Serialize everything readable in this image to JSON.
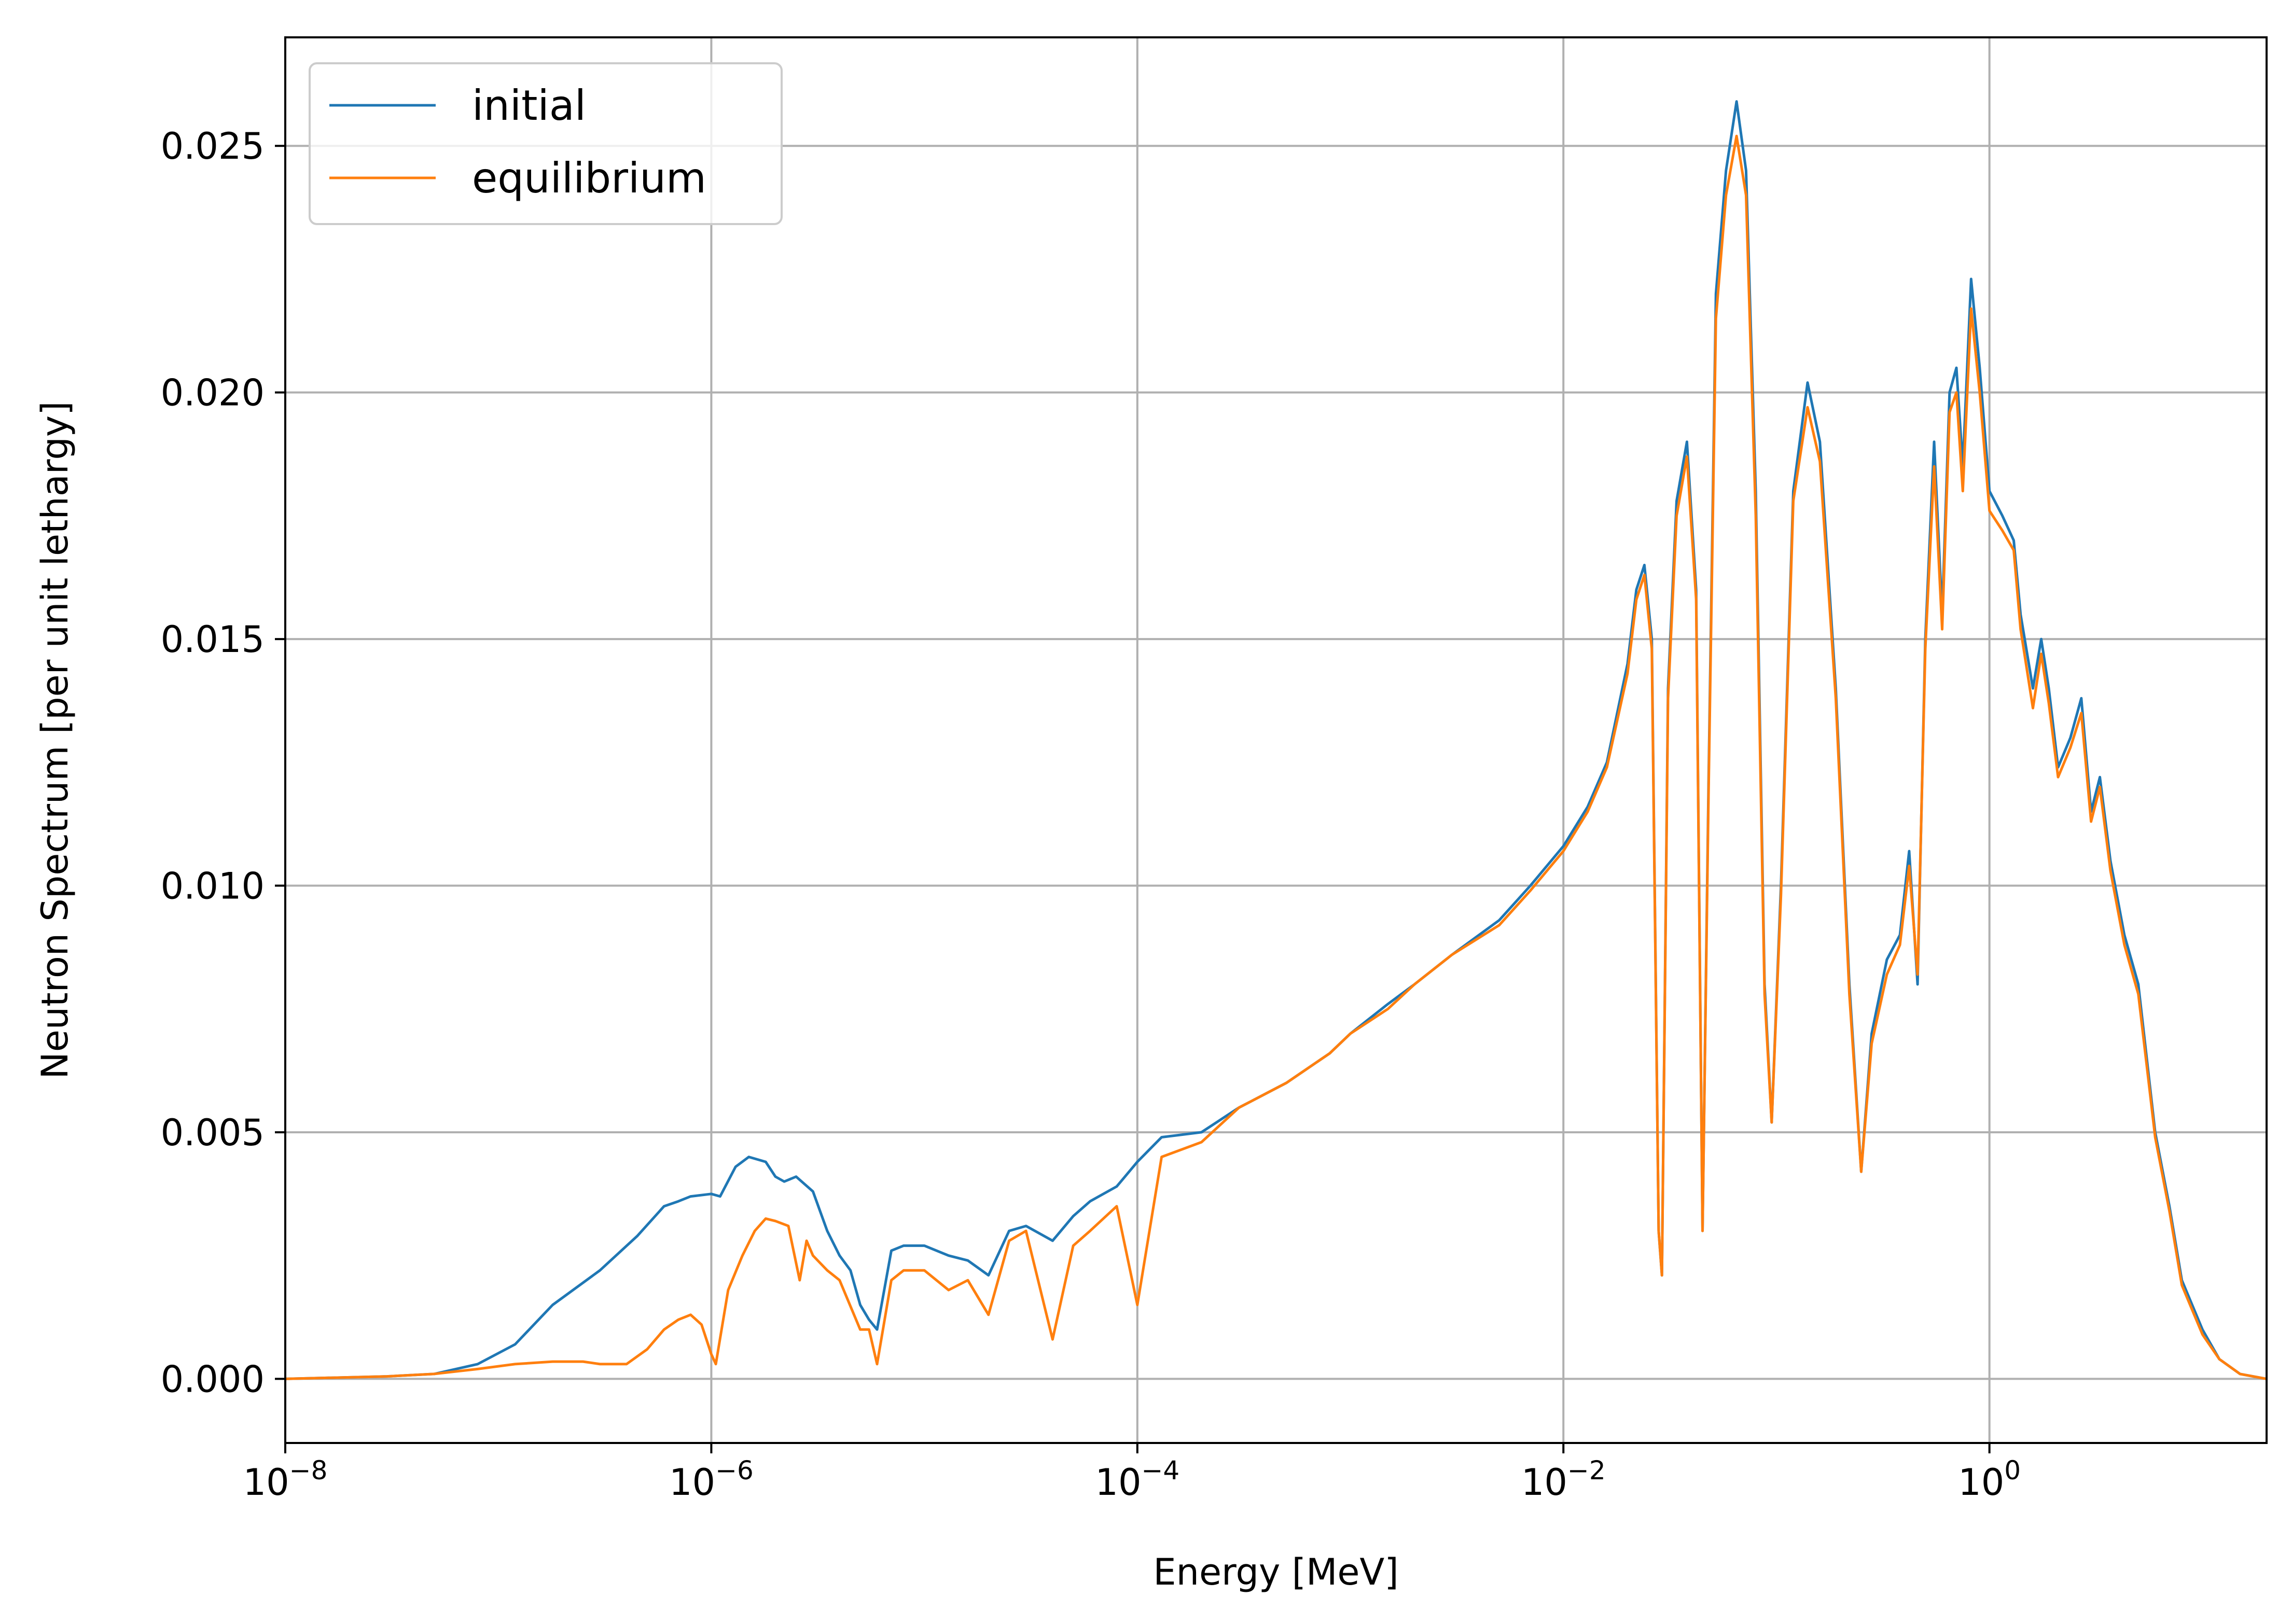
{
  "chart_data": {
    "type": "line",
    "title": "",
    "xlabel": "Energy [MeV]",
    "ylabel": "Neutron Spectrum [per unit lethargy]",
    "xscale": "log",
    "xlim": [
      1e-08,
      20
    ],
    "ylim": [
      -0.0013,
      0.0272
    ],
    "grid": true,
    "legend": "top-left",
    "x_ticks": [
      {
        "base": "10",
        "exp": "−8",
        "value": 1e-08
      },
      {
        "base": "10",
        "exp": "−6",
        "value": 1e-06
      },
      {
        "base": "10",
        "exp": "−4",
        "value": 0.0001
      },
      {
        "base": "10",
        "exp": "−2",
        "value": 0.01
      },
      {
        "base": "10",
        "exp": "0",
        "value": 1
      }
    ],
    "y_ticks": [
      {
        "label": "0.000",
        "value": 0.0
      },
      {
        "label": "0.005",
        "value": 0.005
      },
      {
        "label": "0.010",
        "value": 0.01
      },
      {
        "label": "0.015",
        "value": 0.015
      },
      {
        "label": "0.020",
        "value": 0.02
      },
      {
        "label": "0.025",
        "value": 0.025
      }
    ],
    "series": [
      {
        "name": "initial",
        "color": "#1f77b4",
        "points": [
          [
            1e-08,
            0.0
          ],
          [
            3e-08,
            5e-05
          ],
          [
            5e-08,
            0.0001
          ],
          [
            8e-08,
            0.0003
          ],
          [
            1.2e-07,
            0.0007
          ],
          [
            1.8e-07,
            0.0015
          ],
          [
            3e-07,
            0.0022
          ],
          [
            4.5e-07,
            0.0029
          ],
          [
            6e-07,
            0.0035
          ],
          [
            7e-07,
            0.0036
          ],
          [
            8e-07,
            0.0037
          ],
          [
            1e-06,
            0.00375
          ],
          [
            1.1e-06,
            0.0037
          ],
          [
            1.3e-06,
            0.0043
          ],
          [
            1.5e-06,
            0.0045
          ],
          [
            1.8e-06,
            0.0044
          ],
          [
            2e-06,
            0.0041
          ],
          [
            2.2e-06,
            0.004
          ],
          [
            2.5e-06,
            0.0041
          ],
          [
            3e-06,
            0.0038
          ],
          [
            3.5e-06,
            0.003
          ],
          [
            4e-06,
            0.0025
          ],
          [
            4.5e-06,
            0.0022
          ],
          [
            5e-06,
            0.0015
          ],
          [
            5.5e-06,
            0.0012
          ],
          [
            6e-06,
            0.001
          ],
          [
            7e-06,
            0.0026
          ],
          [
            8e-06,
            0.0027
          ],
          [
            1e-05,
            0.0027
          ],
          [
            1.3e-05,
            0.0025
          ],
          [
            1.6e-05,
            0.0024
          ],
          [
            2e-05,
            0.0021
          ],
          [
            2.5e-05,
            0.003
          ],
          [
            3e-05,
            0.0031
          ],
          [
            4e-05,
            0.0028
          ],
          [
            5e-05,
            0.0033
          ],
          [
            6e-05,
            0.0036
          ],
          [
            8e-05,
            0.0039
          ],
          [
            0.0001,
            0.0044
          ],
          [
            0.00013,
            0.0049
          ],
          [
            0.0002,
            0.005
          ],
          [
            0.0003,
            0.0055
          ],
          [
            0.0005,
            0.006
          ],
          [
            0.0008,
            0.0066
          ],
          [
            0.001,
            0.007
          ],
          [
            0.0015,
            0.0076
          ],
          [
            0.002,
            0.008
          ],
          [
            0.003,
            0.0086
          ],
          [
            0.005,
            0.0093
          ],
          [
            0.007,
            0.01
          ],
          [
            0.01,
            0.0108
          ],
          [
            0.013,
            0.0116
          ],
          [
            0.016,
            0.0125
          ],
          [
            0.02,
            0.0145
          ],
          [
            0.022,
            0.016
          ],
          [
            0.024,
            0.0165
          ],
          [
            0.026,
            0.015
          ],
          [
            0.028,
            0.003
          ],
          [
            0.029,
            0.0021
          ],
          [
            0.031,
            0.014
          ],
          [
            0.034,
            0.0178
          ],
          [
            0.038,
            0.019
          ],
          [
            0.042,
            0.016
          ],
          [
            0.045,
            0.003
          ],
          [
            0.048,
            0.012
          ],
          [
            0.052,
            0.022
          ],
          [
            0.058,
            0.0245
          ],
          [
            0.065,
            0.0259
          ],
          [
            0.072,
            0.0245
          ],
          [
            0.08,
            0.018
          ],
          [
            0.088,
            0.008
          ],
          [
            0.095,
            0.0052
          ],
          [
            0.105,
            0.01
          ],
          [
            0.12,
            0.018
          ],
          [
            0.14,
            0.0202
          ],
          [
            0.16,
            0.019
          ],
          [
            0.19,
            0.014
          ],
          [
            0.22,
            0.008
          ],
          [
            0.25,
            0.0042
          ],
          [
            0.28,
            0.007
          ],
          [
            0.33,
            0.0085
          ],
          [
            0.38,
            0.009
          ],
          [
            0.42,
            0.0107
          ],
          [
            0.46,
            0.008
          ],
          [
            0.5,
            0.015
          ],
          [
            0.55,
            0.019
          ],
          [
            0.6,
            0.0155
          ],
          [
            0.65,
            0.02
          ],
          [
            0.7,
            0.0205
          ],
          [
            0.75,
            0.0185
          ],
          [
            0.82,
            0.0223
          ],
          [
            0.9,
            0.0205
          ],
          [
            1.0,
            0.018
          ],
          [
            1.15,
            0.0175
          ],
          [
            1.3,
            0.017
          ],
          [
            1.4,
            0.0155
          ],
          [
            1.6,
            0.014
          ],
          [
            1.75,
            0.015
          ],
          [
            1.9,
            0.014
          ],
          [
            2.1,
            0.0124
          ],
          [
            2.4,
            0.013
          ],
          [
            2.7,
            0.0138
          ],
          [
            3.0,
            0.0115
          ],
          [
            3.3,
            0.0122
          ],
          [
            3.7,
            0.0105
          ],
          [
            4.3,
            0.009
          ],
          [
            5.0,
            0.008
          ],
          [
            6.0,
            0.005
          ],
          [
            7.0,
            0.0035
          ],
          [
            8.0,
            0.002
          ],
          [
            10.0,
            0.001
          ],
          [
            12.0,
            0.0004
          ],
          [
            15.0,
            0.0001
          ],
          [
            20.0,
            0.0
          ]
        ]
      },
      {
        "name": "equilibrium",
        "color": "#ff7f0e",
        "points": [
          [
            1e-08,
            0.0
          ],
          [
            3e-08,
            5e-05
          ],
          [
            5e-08,
            0.0001
          ],
          [
            8e-08,
            0.0002
          ],
          [
            1.2e-07,
            0.0003
          ],
          [
            1.8e-07,
            0.00035
          ],
          [
            2.5e-07,
            0.00035
          ],
          [
            3e-07,
            0.0003
          ],
          [
            4e-07,
            0.0003
          ],
          [
            5e-07,
            0.0006
          ],
          [
            6e-07,
            0.001
          ],
          [
            7e-07,
            0.0012
          ],
          [
            8e-07,
            0.0013
          ],
          [
            9e-07,
            0.0011
          ],
          [
            1e-06,
            0.0005
          ],
          [
            1.05e-06,
            0.0003
          ],
          [
            1.2e-06,
            0.0018
          ],
          [
            1.4e-06,
            0.0025
          ],
          [
            1.6e-06,
            0.003
          ],
          [
            1.8e-06,
            0.00325
          ],
          [
            2e-06,
            0.0032
          ],
          [
            2.3e-06,
            0.0031
          ],
          [
            2.6e-06,
            0.002
          ],
          [
            2.8e-06,
            0.0028
          ],
          [
            3e-06,
            0.0025
          ],
          [
            3.5e-06,
            0.0022
          ],
          [
            4e-06,
            0.002
          ],
          [
            5e-06,
            0.001
          ],
          [
            5.5e-06,
            0.001
          ],
          [
            6e-06,
            0.0003
          ],
          [
            7e-06,
            0.002
          ],
          [
            8e-06,
            0.0022
          ],
          [
            1e-05,
            0.0022
          ],
          [
            1.3e-05,
            0.0018
          ],
          [
            1.6e-05,
            0.002
          ],
          [
            2e-05,
            0.0013
          ],
          [
            2.5e-05,
            0.0028
          ],
          [
            3e-05,
            0.003
          ],
          [
            4e-05,
            0.0008
          ],
          [
            5e-05,
            0.0027
          ],
          [
            6e-05,
            0.003
          ],
          [
            8e-05,
            0.0035
          ],
          [
            0.0001,
            0.0015
          ],
          [
            0.00013,
            0.0045
          ],
          [
            0.0002,
            0.0048
          ],
          [
            0.0003,
            0.0055
          ],
          [
            0.0005,
            0.006
          ],
          [
            0.0008,
            0.0066
          ],
          [
            0.001,
            0.007
          ],
          [
            0.0015,
            0.0075
          ],
          [
            0.002,
            0.008
          ],
          [
            0.003,
            0.0086
          ],
          [
            0.005,
            0.0092
          ],
          [
            0.007,
            0.0099
          ],
          [
            0.01,
            0.0107
          ],
          [
            0.013,
            0.0115
          ],
          [
            0.016,
            0.0124
          ],
          [
            0.02,
            0.0143
          ],
          [
            0.022,
            0.0158
          ],
          [
            0.024,
            0.0163
          ],
          [
            0.026,
            0.0148
          ],
          [
            0.028,
            0.003
          ],
          [
            0.029,
            0.0021
          ],
          [
            0.031,
            0.0138
          ],
          [
            0.034,
            0.0175
          ],
          [
            0.038,
            0.0187
          ],
          [
            0.042,
            0.0158
          ],
          [
            0.045,
            0.003
          ],
          [
            0.048,
            0.0118
          ],
          [
            0.052,
            0.0215
          ],
          [
            0.058,
            0.024
          ],
          [
            0.065,
            0.0252
          ],
          [
            0.072,
            0.024
          ],
          [
            0.08,
            0.0175
          ],
          [
            0.088,
            0.0078
          ],
          [
            0.095,
            0.0052
          ],
          [
            0.105,
            0.0098
          ],
          [
            0.12,
            0.0178
          ],
          [
            0.14,
            0.0197
          ],
          [
            0.16,
            0.0186
          ],
          [
            0.19,
            0.0138
          ],
          [
            0.22,
            0.0078
          ],
          [
            0.25,
            0.0042
          ],
          [
            0.28,
            0.0068
          ],
          [
            0.33,
            0.0082
          ],
          [
            0.38,
            0.0088
          ],
          [
            0.42,
            0.0104
          ],
          [
            0.46,
            0.0082
          ],
          [
            0.5,
            0.0148
          ],
          [
            0.55,
            0.0185
          ],
          [
            0.6,
            0.0152
          ],
          [
            0.65,
            0.0196
          ],
          [
            0.7,
            0.02
          ],
          [
            0.75,
            0.018
          ],
          [
            0.82,
            0.0217
          ],
          [
            0.9,
            0.02
          ],
          [
            1.0,
            0.0176
          ],
          [
            1.15,
            0.0172
          ],
          [
            1.3,
            0.0168
          ],
          [
            1.4,
            0.0152
          ],
          [
            1.6,
            0.0136
          ],
          [
            1.75,
            0.0147
          ],
          [
            1.9,
            0.0137
          ],
          [
            2.1,
            0.0122
          ],
          [
            2.4,
            0.0128
          ],
          [
            2.7,
            0.0135
          ],
          [
            3.0,
            0.0113
          ],
          [
            3.3,
            0.012
          ],
          [
            3.7,
            0.0103
          ],
          [
            4.3,
            0.0088
          ],
          [
            5.0,
            0.0078
          ],
          [
            6.0,
            0.0049
          ],
          [
            7.0,
            0.0034
          ],
          [
            8.0,
            0.0019
          ],
          [
            10.0,
            0.0009
          ],
          [
            12.0,
            0.0004
          ],
          [
            15.0,
            0.0001
          ],
          [
            20.0,
            0.0
          ]
        ]
      }
    ]
  }
}
